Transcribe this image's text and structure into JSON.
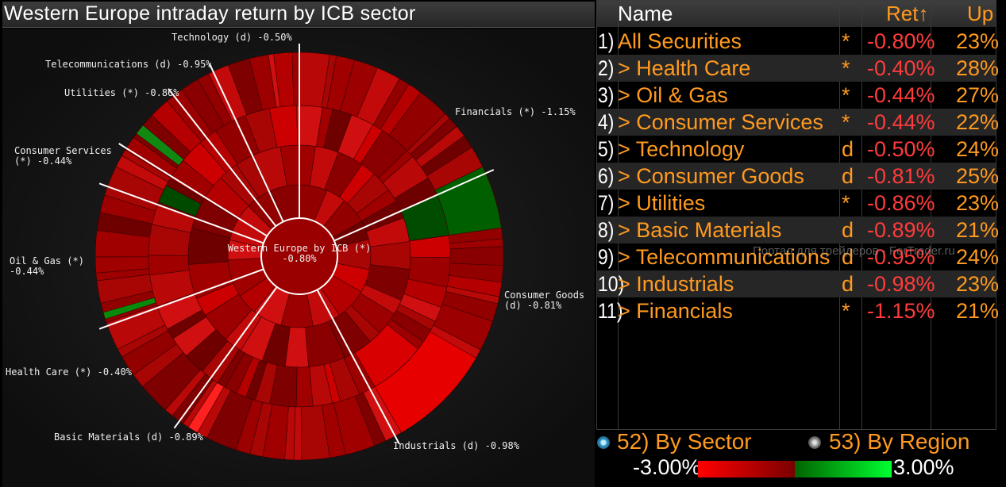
{
  "chart": {
    "title": "Western Europe intraday return by ICB sector",
    "center_label": "Western Europe by ICB (*)",
    "center_value": "-0.80%",
    "labels": [
      {
        "text": "Technology (d) -0.50%"
      },
      {
        "text": "Telecommunications (d) -0.95%"
      },
      {
        "text": "Utilities (*) -0.86%"
      },
      {
        "text": "Consumer Services"
      },
      {
        "text": "(*) -0.44%"
      },
      {
        "text": "Oil & Gas (*)"
      },
      {
        "text": "-0.44%"
      },
      {
        "text": "Health Care (*) -0.40%"
      },
      {
        "text": "Basic Materials (d) -0.89%"
      },
      {
        "text": "Industrials (d) -0.98%"
      },
      {
        "text": "Consumer Goods"
      },
      {
        "text": "(d) -0.81%"
      },
      {
        "text": "Financials (*) -1.15%"
      }
    ]
  },
  "table": {
    "headers": {
      "name": "Name",
      "ret": "Ret↑",
      "up": "Up"
    },
    "rows": [
      {
        "idx": "1)",
        "name": "All Securities",
        "flag": "*",
        "ret": "-0.80%",
        "up": "23%"
      },
      {
        "idx": "2)",
        "name": "> Health Care",
        "flag": "*",
        "ret": "-0.40%",
        "up": "28%"
      },
      {
        "idx": "3)",
        "name": "> Oil & Gas",
        "flag": "*",
        "ret": "-0.44%",
        "up": "27%"
      },
      {
        "idx": "4)",
        "name": "> Consumer Services",
        "flag": "*",
        "ret": "-0.44%",
        "up": "22%"
      },
      {
        "idx": "5)",
        "name": "> Technology",
        "flag": "d",
        "ret": "-0.50%",
        "up": "24%"
      },
      {
        "idx": "6)",
        "name": "> Consumer Goods",
        "flag": "d",
        "ret": "-0.81%",
        "up": "25%"
      },
      {
        "idx": "7)",
        "name": "> Utilities",
        "flag": "*",
        "ret": "-0.86%",
        "up": "23%"
      },
      {
        "idx": "8)",
        "name": "> Basic Materials",
        "flag": "d",
        "ret": "-0.89%",
        "up": "21%"
      },
      {
        "idx": "9)",
        "name": "> Telecommunications",
        "flag": "d",
        "ret": "-0.95%",
        "up": "24%"
      },
      {
        "idx": "10)",
        "name": "> Industrials",
        "flag": "d",
        "ret": "-0.98%",
        "up": "23%"
      },
      {
        "idx": "11)",
        "name": "> Financials",
        "flag": "*",
        "ret": "-1.15%",
        "up": "21%"
      }
    ]
  },
  "options": {
    "by_sector": "52)  By Sector",
    "by_region": "53)  By Region",
    "selected": "by_sector"
  },
  "legend": {
    "min": "-3.00%",
    "max": "3.00%",
    "negative_color": "#ff0000",
    "positive_color": "#00ff30"
  },
  "watermark": "Портал для трейдеров - ForTrader.ru"
}
